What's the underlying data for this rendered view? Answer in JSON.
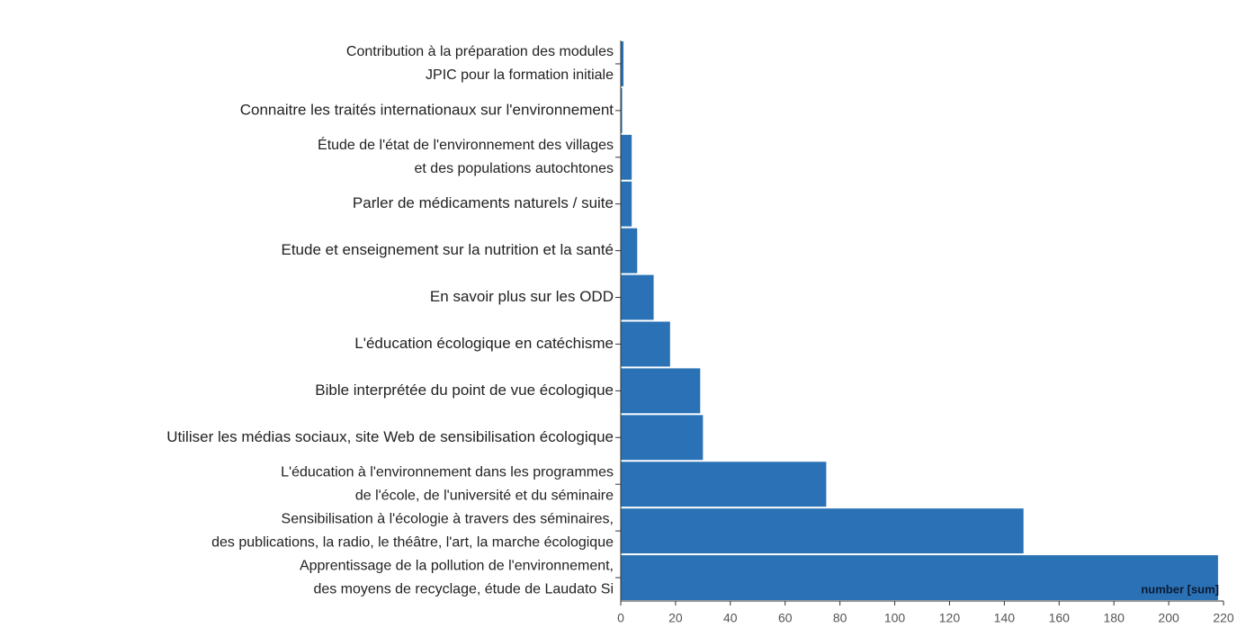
{
  "chart_data": {
    "type": "hbar",
    "categories": [
      [
        "Contribution à la préparation des modules",
        "JPIC pour la formation initiale"
      ],
      [
        "Connaitre les traités internationaux sur l'environnement"
      ],
      [
        "Étude de l'état de l'environnement des villages",
        "et des populations autochtones"
      ],
      [
        "Parler de médicaments naturels / suite"
      ],
      [
        "Etude et enseignement sur la nutrition et la santé"
      ],
      [
        "En savoir plus sur les ODD"
      ],
      [
        "L'éducation écologique en catéchisme"
      ],
      [
        "Bible interprétée du point de vue écologique"
      ],
      [
        "Utiliser les médias sociaux, site Web de sensibilisation écologique"
      ],
      [
        "L'éducation à l'environnement dans les programmes",
        "de l'école, de l'université et du séminaire"
      ],
      [
        "Sensibilisation à l'écologie à travers des séminaires,",
        "des publications, la radio, le théâtre, l'art, la marche écologique"
      ],
      [
        "Apprentissage de la pollution de l'environnement,",
        "des moyens de recyclage, étude de Laudato Si"
      ]
    ],
    "values": [
      1,
      0.5,
      4,
      4,
      6,
      12,
      18,
      29,
      30,
      75,
      147,
      218
    ],
    "color": "#2a72b5",
    "annotation": "number [sum]",
    "xlim": [
      0,
      220
    ],
    "xticks": [
      0,
      20,
      40,
      60,
      80,
      100,
      120,
      140,
      160,
      180,
      200,
      220
    ]
  }
}
